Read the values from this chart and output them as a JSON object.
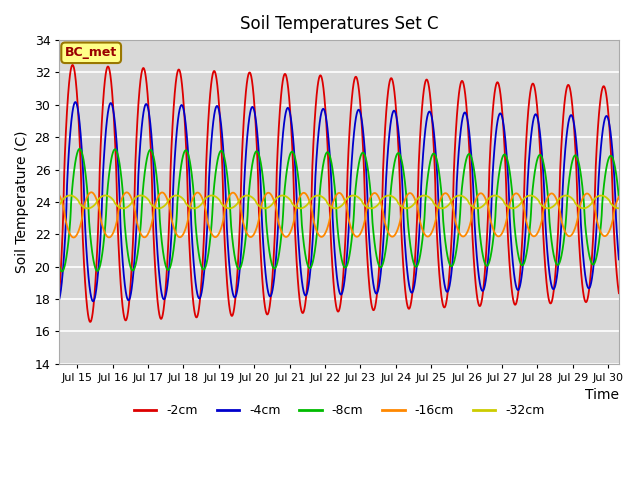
{
  "title": "Soil Temperatures Set C",
  "xlabel": "Time",
  "ylabel": "Soil Temperature (C)",
  "ylim": [
    14,
    34
  ],
  "xlim_days": [
    14.5,
    30.3
  ],
  "yticks": [
    14,
    16,
    18,
    20,
    22,
    24,
    26,
    28,
    30,
    32,
    34
  ],
  "xtick_days": [
    15,
    16,
    17,
    18,
    19,
    20,
    21,
    22,
    23,
    24,
    25,
    26,
    27,
    28,
    29,
    30
  ],
  "xtick_labels": [
    "Jul 15",
    "Jul 16",
    "Jul 17",
    "Jul 18",
    "Jul 19",
    "Jul 20",
    "Jul 21",
    "Jul 22",
    "Jul 23",
    "Jul 24",
    "Jul 25",
    "Jul 26",
    "Jul 27",
    "Jul 28",
    "Jul 29",
    "Jul 30"
  ],
  "series": [
    {
      "label": "-2cm",
      "color": "#dd0000",
      "mean": 24.5,
      "amplitude": 8.0,
      "phase_shift": 0.62,
      "decay": 0.012
    },
    {
      "label": "-4cm",
      "color": "#0000cc",
      "mean": 24.0,
      "amplitude": 6.2,
      "phase_shift": 0.7,
      "decay": 0.01
    },
    {
      "label": "-8cm",
      "color": "#00bb00",
      "mean": 23.5,
      "amplitude": 3.8,
      "phase_shift": 0.82,
      "decay": 0.008
    },
    {
      "label": "-16cm",
      "color": "#ff8800",
      "mean": 23.2,
      "amplitude": 1.4,
      "phase_shift": 0.15,
      "decay": 0.004
    },
    {
      "label": "-32cm",
      "color": "#cccc00",
      "mean": 24.0,
      "amplitude": 0.4,
      "phase_shift": 0.55,
      "decay": 0.001
    }
  ],
  "bg_color": "#d8d8d8",
  "grid_color": "#ffffff",
  "annotation_text": "BC_met",
  "annotation_bg": "#ffff88",
  "annotation_border": "#997700",
  "figsize": [
    6.4,
    4.8
  ],
  "dpi": 100
}
